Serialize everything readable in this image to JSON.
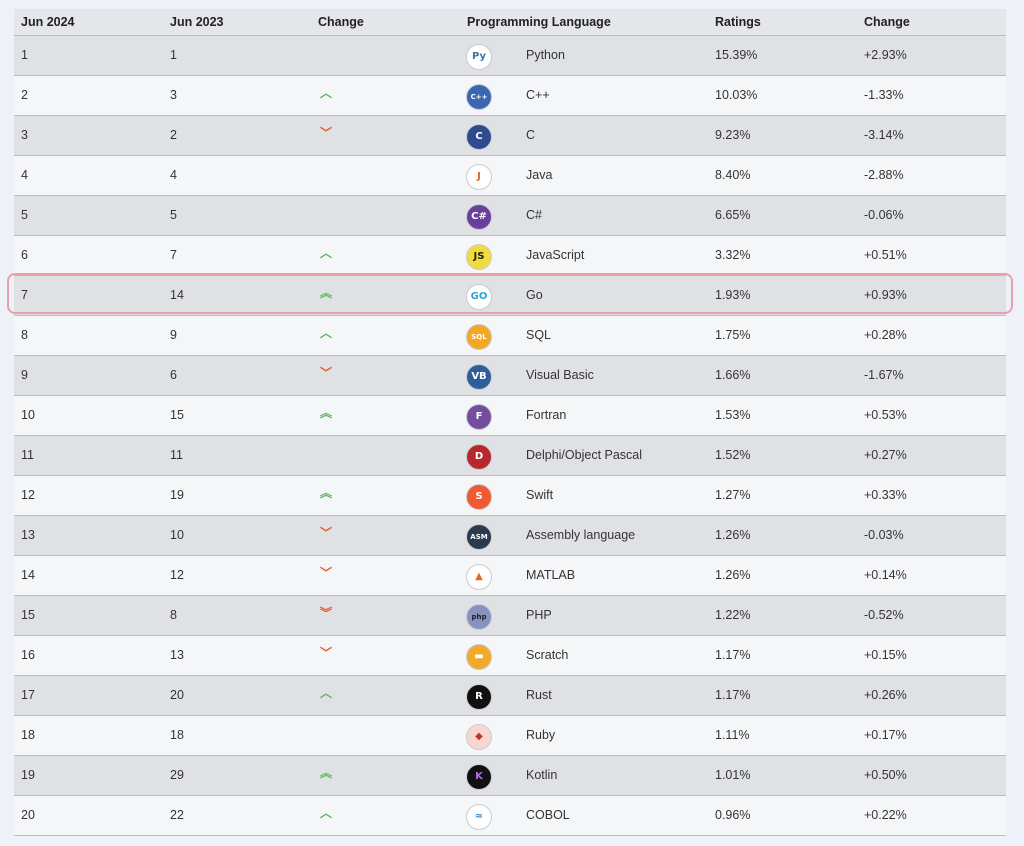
{
  "headers": [
    "Jun 2024",
    "Jun 2023",
    "Change",
    "Programming Language",
    "Ratings",
    "Change"
  ],
  "rows": [
    {
      "cur": "1",
      "prev": "1",
      "trend": "none",
      "icon": "python-icon",
      "iconColor": "#3a75a8",
      "iconBg": "#ffffff",
      "iconText": "Py",
      "lang": "Python",
      "rating": "15.39%",
      "change": "+2.93%"
    },
    {
      "cur": "2",
      "prev": "3",
      "trend": "up",
      "icon": "cpp-icon",
      "iconColor": "#ffffff",
      "iconBg": "#3b66b0",
      "iconText": "C++",
      "lang": "C++",
      "rating": "10.03%",
      "change": "-1.33%"
    },
    {
      "cur": "3",
      "prev": "2",
      "trend": "down",
      "icon": "c-icon",
      "iconColor": "#ffffff",
      "iconBg": "#2f4a8f",
      "iconText": "C",
      "lang": "C",
      "rating": "9.23%",
      "change": "-3.14%"
    },
    {
      "cur": "4",
      "prev": "4",
      "trend": "none",
      "icon": "java-icon",
      "iconColor": "#e0662f",
      "iconBg": "#ffffff",
      "iconText": "J",
      "lang": "Java",
      "rating": "8.40%",
      "change": "-2.88%"
    },
    {
      "cur": "5",
      "prev": "5",
      "trend": "none",
      "icon": "csharp-icon",
      "iconColor": "#ffffff",
      "iconBg": "#6a3f9c",
      "iconText": "C#",
      "lang": "C#",
      "rating": "6.65%",
      "change": "-0.06%"
    },
    {
      "cur": "6",
      "prev": "7",
      "trend": "up",
      "icon": "javascript-icon",
      "iconColor": "#222222",
      "iconBg": "#f0db3a",
      "iconText": "JS",
      "lang": "JavaScript",
      "rating": "3.32%",
      "change": "+0.51%"
    },
    {
      "cur": "7",
      "prev": "14",
      "trend": "up2",
      "icon": "go-icon",
      "iconColor": "#2aa6d6",
      "iconBg": "#ffffff",
      "iconText": "GO",
      "lang": "Go",
      "rating": "1.93%",
      "change": "+0.93%"
    },
    {
      "cur": "8",
      "prev": "9",
      "trend": "up",
      "icon": "sql-icon",
      "iconColor": "#ffffff",
      "iconBg": "#f2a823",
      "iconText": "SQL",
      "lang": "SQL",
      "rating": "1.75%",
      "change": "+0.28%"
    },
    {
      "cur": "9",
      "prev": "6",
      "trend": "down",
      "icon": "visual-basic-icon",
      "iconColor": "#ffffff",
      "iconBg": "#2f5d9a",
      "iconText": "VB",
      "lang": "Visual Basic",
      "rating": "1.66%",
      "change": "-1.67%"
    },
    {
      "cur": "10",
      "prev": "15",
      "trend": "up2",
      "icon": "fortran-icon",
      "iconColor": "#ffffff",
      "iconBg": "#734e9e",
      "iconText": "F",
      "lang": "Fortran",
      "rating": "1.53%",
      "change": "+0.53%"
    },
    {
      "cur": "11",
      "prev": "11",
      "trend": "none",
      "icon": "delphi-icon",
      "iconColor": "#ffffff",
      "iconBg": "#b8272e",
      "iconText": "D",
      "lang": "Delphi/Object Pascal",
      "rating": "1.52%",
      "change": "+0.27%"
    },
    {
      "cur": "12",
      "prev": "19",
      "trend": "up2",
      "icon": "swift-icon",
      "iconColor": "#ffffff",
      "iconBg": "#ef5a32",
      "iconText": "S",
      "lang": "Swift",
      "rating": "1.27%",
      "change": "+0.33%"
    },
    {
      "cur": "13",
      "prev": "10",
      "trend": "down",
      "icon": "assembly-icon",
      "iconColor": "#ffffff",
      "iconBg": "#2b3a4f",
      "iconText": "ASM",
      "lang": "Assembly language",
      "rating": "1.26%",
      "change": "-0.03%"
    },
    {
      "cur": "14",
      "prev": "12",
      "trend": "down",
      "icon": "matlab-icon",
      "iconColor": "#e36a22",
      "iconBg": "#ffffff",
      "iconText": "▲",
      "lang": "MATLAB",
      "rating": "1.26%",
      "change": "+0.14%"
    },
    {
      "cur": "15",
      "prev": "8",
      "trend": "down2",
      "icon": "php-icon",
      "iconColor": "#222222",
      "iconBg": "#8892bf",
      "iconText": "php",
      "lang": "PHP",
      "rating": "1.22%",
      "change": "-0.52%"
    },
    {
      "cur": "16",
      "prev": "13",
      "trend": "down",
      "icon": "scratch-icon",
      "iconColor": "#ffffff",
      "iconBg": "#f0a92a",
      "iconText": "▬",
      "lang": "Scratch",
      "rating": "1.17%",
      "change": "+0.15%"
    },
    {
      "cur": "17",
      "prev": "20",
      "trend": "up",
      "icon": "rust-icon",
      "iconColor": "#ffffff",
      "iconBg": "#111111",
      "iconText": "R",
      "lang": "Rust",
      "rating": "1.17%",
      "change": "+0.26%"
    },
    {
      "cur": "18",
      "prev": "18",
      "trend": "none",
      "icon": "ruby-icon",
      "iconColor": "#c8322a",
      "iconBg": "#f6d8d0",
      "iconText": "◆",
      "lang": "Ruby",
      "rating": "1.11%",
      "change": "+0.17%"
    },
    {
      "cur": "19",
      "prev": "29",
      "trend": "up2",
      "icon": "kotlin-icon",
      "iconColor": "#b46ee8",
      "iconBg": "#111111",
      "iconText": "K",
      "lang": "Kotlin",
      "rating": "1.01%",
      "change": "+0.50%"
    },
    {
      "cur": "20",
      "prev": "22",
      "trend": "up",
      "icon": "cobol-icon",
      "iconColor": "#3a80c3",
      "iconBg": "#ffffff",
      "iconText": "≈",
      "lang": "COBOL",
      "rating": "0.96%",
      "change": "+0.22%"
    }
  ],
  "colors": {
    "up": "#5cb85c",
    "down": "#e35a33",
    "highlight": "#e8a0ac"
  }
}
